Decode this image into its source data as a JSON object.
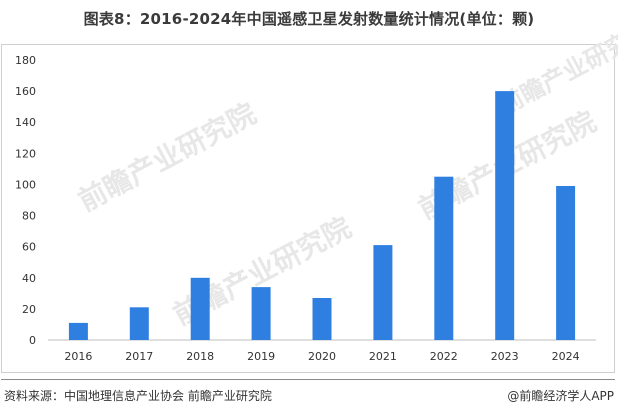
{
  "title": "图表8：2016-2024年中国遥感卫星发射数量统计情况(单位：颗)",
  "footer": {
    "source": "资料来源：中国地理信息产业协会 前瞻产业研究院",
    "brand": "@前瞻经济学人APP"
  },
  "watermark": {
    "text": "前瞻产业研究院"
  },
  "chart_data": {
    "type": "bar",
    "title": "图表8：2016-2024年中国遥感卫星发射数量统计情况(单位：颗)",
    "categories": [
      "2016",
      "2017",
      "2018",
      "2019",
      "2020",
      "2021",
      "2022",
      "2023",
      "2024"
    ],
    "values": [
      11,
      21,
      40,
      34,
      27,
      61,
      105,
      160,
      99
    ],
    "ylim": [
      0,
      180
    ],
    "yticks": [
      0,
      20,
      40,
      60,
      80,
      100,
      120,
      140,
      160,
      180
    ],
    "grid": false,
    "legend": "none",
    "bar_color": "#2f7fe0",
    "axis_color": "#bfbfbf",
    "tick_label_color": "#333333"
  }
}
